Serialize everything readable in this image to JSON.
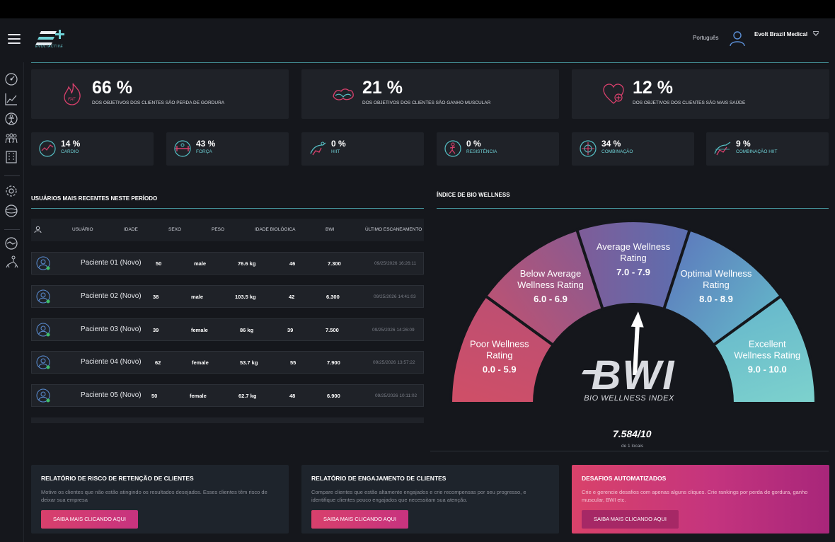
{
  "header": {
    "logo_text": "EVOLTACTIVE",
    "language": "Português",
    "user_name": "Evolt Brazil Medical"
  },
  "sidebar": {
    "icons": [
      "dashboard-icon",
      "chart-line-icon",
      "body-scan-icon",
      "group-icon",
      "building-icon",
      "settings-gear-icon",
      "globe-icon",
      "handshake-icon",
      "hierarchy-icon"
    ]
  },
  "goals": [
    {
      "value": "66 %",
      "label": "DOS OBJETIVOS DOS CLIENTES SÃO PERDA DE GORDURA",
      "icon": "fat-flame-icon"
    },
    {
      "value": "21 %",
      "label": "DOS OBJETIVOS DOS CLIENTES SÃO GANHO MUSCULAR",
      "icon": "muscle-icon"
    },
    {
      "value": "12 %",
      "label": "DOS OBJETIVOS DOS CLIENTES SÃO MAIS SAÚDE",
      "icon": "heart-plus-icon"
    }
  ],
  "training": [
    {
      "value": "14 %",
      "label": "CARDIO",
      "icon": "cardio-icon"
    },
    {
      "value": "43 %",
      "label": "FORÇA",
      "icon": "strength-icon"
    },
    {
      "value": "0 %",
      "label": "HIIT",
      "icon": "hiit-icon"
    },
    {
      "value": "0 %",
      "label": "RESISTÊNCIA",
      "icon": "endurance-icon"
    },
    {
      "value": "34 %",
      "label": "COMBINAÇÃO",
      "icon": "combination-icon"
    },
    {
      "value": "9 %",
      "label": "COMBINAÇÃO HIIT",
      "icon": "combination-hiit-icon"
    }
  ],
  "users": {
    "title": "USUÁRIOS MAIS RECENTES NESTE PERÍODO",
    "columns": [
      "USUÁRIO",
      "IDADE",
      "SEXO",
      "PESO",
      "IDADE BIOLÓGICA",
      "BWI",
      "ÚLTIMO ESCANEAMENTO"
    ],
    "rows": [
      {
        "name": "Paciente 01 (Novo)",
        "age": "50",
        "sex": "male",
        "weight": "76.6 kg",
        "bio_age": "46",
        "bwi": "7.300",
        "last_scan": "09/25/2026 16:26:11"
      },
      {
        "name": "Paciente 02 (Novo)",
        "age": "38",
        "sex": "male",
        "weight": "103.5 kg",
        "bio_age": "42",
        "bwi": "6.300",
        "last_scan": "09/25/2026 14:41:03"
      },
      {
        "name": "Paciente 03 (Novo)",
        "age": "39",
        "sex": "female",
        "weight": "86 kg",
        "bio_age": "39",
        "bwi": "7.500",
        "last_scan": "09/25/2026 14:26:09"
      },
      {
        "name": "Paciente 04 (Novo)",
        "age": "62",
        "sex": "female",
        "weight": "53.7 kg",
        "bio_age": "55",
        "bwi": "7.900",
        "last_scan": "09/25/2026 13:57:22"
      },
      {
        "name": "Paciente 05 (Novo)",
        "age": "50",
        "sex": "female",
        "weight": "62.7 kg",
        "bio_age": "48",
        "bwi": "6.900",
        "last_scan": "09/25/2026 10:11:02"
      }
    ]
  },
  "bwi": {
    "title": "ÍNDICE DE BIO WELLNESS",
    "segments": [
      {
        "line1": "Poor Wellness",
        "line2": "Rating",
        "range": "0.0 - 5.9",
        "color_a": "#d04f67",
        "color_b": "#bd4f72"
      },
      {
        "line1": "Below Average",
        "line2": "Wellness Rating",
        "range": "6.0 - 6.9",
        "color_a": "#b95375",
        "color_b": "#8c5a8f"
      },
      {
        "line1": "Average Wellness",
        "line2": "Rating",
        "range": "7.0 - 7.9",
        "color_a": "#7f5c98",
        "color_b": "#5b6fb0"
      },
      {
        "line1": "Optimal Wellness",
        "line2": "Rating",
        "range": "8.0 - 8.9",
        "color_a": "#5d7dbd",
        "color_b": "#63b0c8"
      },
      {
        "line1": "Excellent",
        "line2": "Wellness Rating",
        "range": "9.0 - 10.0",
        "color_a": "#68b9cc",
        "color_b": "#7dd2cd"
      }
    ],
    "logo": "BWI",
    "logo_sub": "BIO WELLNESS INDEX",
    "pointer_value": 7.584,
    "score": "7.584/10",
    "score_sub": "de 1 locais"
  },
  "cards": [
    {
      "title": "RELATÓRIO DE RISCO DE RETENÇÃO DE CLIENTES",
      "desc": "Motive os clientes que não estão atingindo os resultados desejados. Esses clientes têm risco de deixar sua empresa",
      "button": "SAIBA MAIS CLICANDO AQUI"
    },
    {
      "title": "RELATÓRIO DE ENGAJAMENTO DE CLIENTES",
      "desc": "Compare clientes que estão altamente engajados e crie recompensas por seu progresso, e identifique clientes pouco engajados que necessitam sua atenção.",
      "button": "SAIBA MAIS CLICANDO AQUI"
    },
    {
      "title": "DESAFIOS AUTOMATIZADOS",
      "desc": "Crie e gerencie desafios com apenas alguns cliques. Crie rankings por perda de gordura, ganho muscular, BWI etc.",
      "button": "SAIBA MAIS CLICANDO AQUI"
    }
  ],
  "colors": {
    "accent": "#56bfc5",
    "pink": "#d8406c",
    "panel": "#1f2228"
  }
}
